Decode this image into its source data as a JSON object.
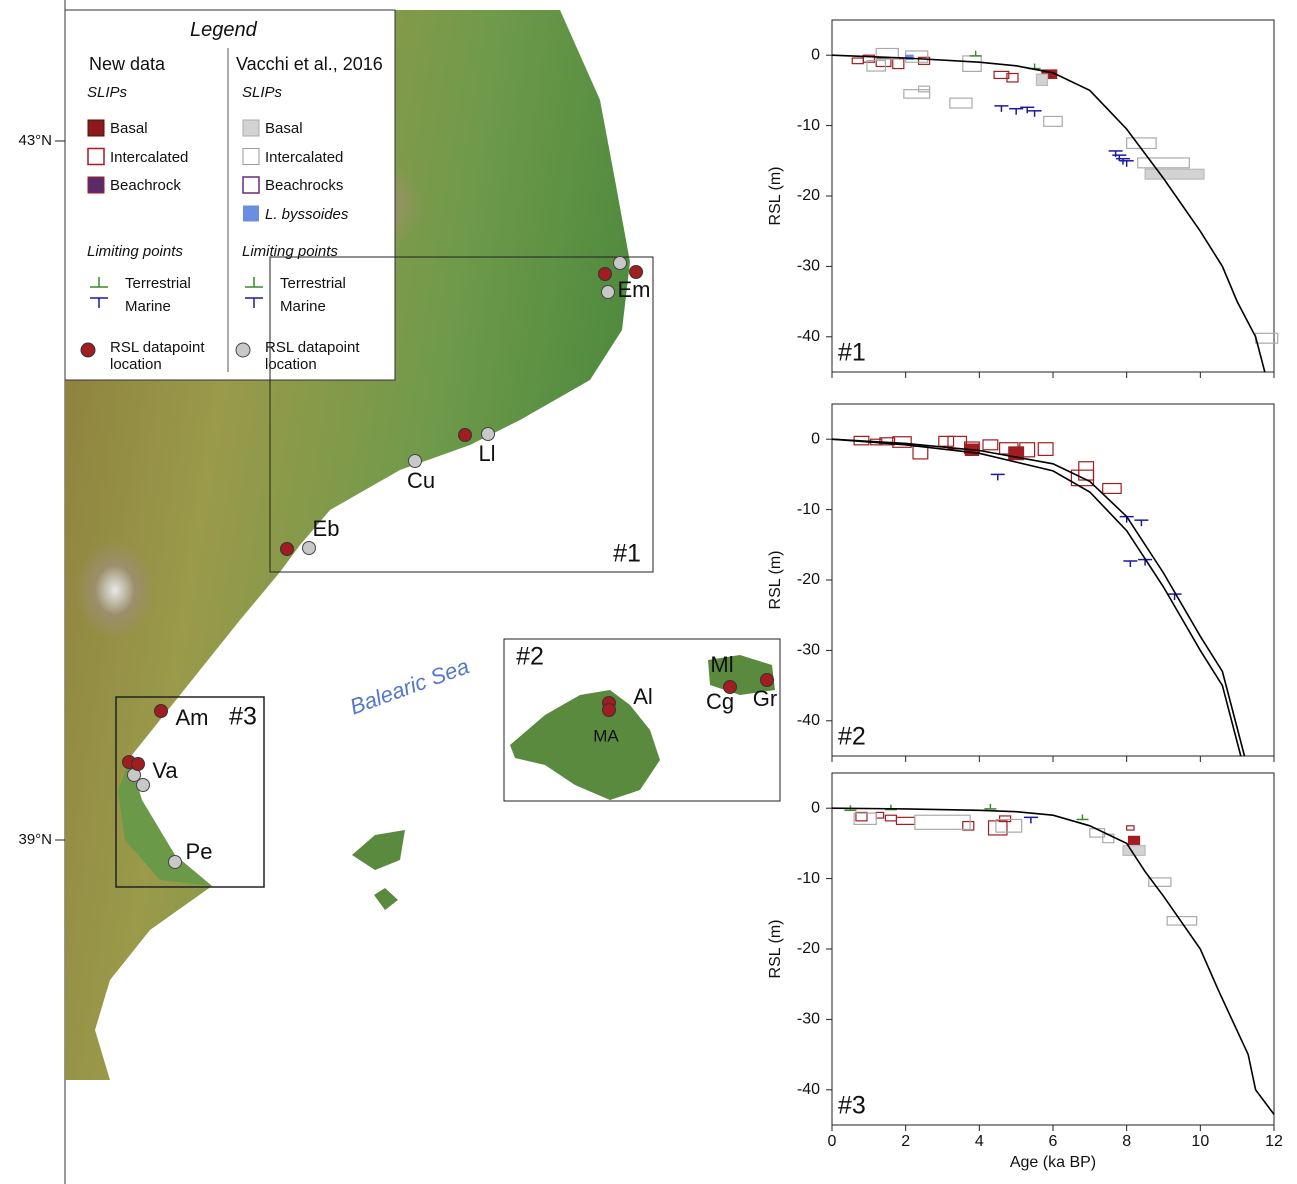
{
  "map": {
    "lat_labels": [
      "43°N",
      "39°N"
    ],
    "sea_label": "Balearic Sea",
    "boxes": [
      "#1",
      "#2",
      "#3"
    ],
    "sites": [
      "Em",
      "Ll",
      "Cu",
      "Eb",
      "Am",
      "Va",
      "Pe",
      "Al",
      "MA",
      "Ml",
      "Cg",
      "Gr"
    ],
    "legend": {
      "title": "Legend",
      "columns": [
        {
          "heading": "New data",
          "slips": "SLIPs",
          "slip_items": [
            "Basal",
            "Intercalated",
            "Beachrock"
          ],
          "limiting": "Limiting points",
          "limiting_items": [
            "Terrestrial",
            "Marine"
          ],
          "location": "RSL datapoint location"
        },
        {
          "heading": "Vacchi et al., 2016",
          "slips": "SLIPs",
          "slip_items": [
            "Basal",
            "Intercalated",
            "Beachrocks",
            "L. byssoides"
          ],
          "limiting": "Limiting points",
          "limiting_items": [
            "Terrestrial",
            "Marine"
          ],
          "location": "RSL datapoint location"
        }
      ]
    }
  },
  "chart_data": [
    {
      "type": "rsl",
      "panel_label": "#1",
      "ylabel": "RSL (m)",
      "xlim": [
        0,
        12
      ],
      "ylim": [
        -45,
        5
      ],
      "xticks": [
        0,
        2,
        4,
        6,
        8,
        10,
        12
      ],
      "yticks": [
        0,
        -10,
        -20,
        -30,
        -40
      ],
      "show_xtick_labels": false,
      "series": [
        {
          "marker": "box",
          "color": "#a11d21",
          "fill": "none",
          "x": [
            0.7,
            1.0,
            1.4,
            1.8,
            2.5,
            4.6,
            4.9
          ],
          "values": [
            -0.8,
            -0.5,
            -1.0,
            -1.2,
            -0.8,
            -2.8,
            -3.2
          ],
          "xerr": [
            0.15,
            0.15,
            0.2,
            0.15,
            0.15,
            0.2,
            0.15
          ],
          "yerr": [
            0.4,
            0.5,
            0.6,
            0.7,
            0.5,
            0.5,
            0.6
          ]
        },
        {
          "marker": "box",
          "color": "#a11d21",
          "fill": "#a11d21",
          "x": [
            5.9
          ],
          "values": [
            -2.7
          ],
          "xerr": [
            0.2
          ],
          "yerr": [
            0.6
          ]
        },
        {
          "marker": "box",
          "color": "#aaaaaa",
          "fill": "none",
          "x": [
            1.5,
            1.2,
            2.3,
            3.8,
            2.3,
            2.5,
            3.5,
            6.0,
            8.4,
            9.0,
            11.8
          ],
          "values": [
            0.2,
            -1.5,
            -0.2,
            -1.2,
            -5.5,
            -4.8,
            -6.8,
            -9.4,
            -12.5,
            -15.3,
            -40.2
          ],
          "xerr": [
            0.3,
            0.25,
            0.3,
            0.25,
            0.35,
            0.15,
            0.3,
            0.25,
            0.4,
            0.7,
            0.3
          ],
          "yerr": [
            0.75,
            0.75,
            0.8,
            1.1,
            0.6,
            0.4,
            0.7,
            0.7,
            0.75,
            0.7,
            0.7
          ]
        },
        {
          "marker": "box",
          "color": "#bbbbbb",
          "fill": "#d3d3d3",
          "x": [
            9.3,
            5.7
          ],
          "values": [
            -16.9,
            -3.5
          ],
          "xerr": [
            0.8,
            0.15
          ],
          "yerr": [
            0.7,
            0.8
          ]
        },
        {
          "marker": "box",
          "color": "#6b8ee0",
          "fill": "#6b8ee0",
          "x": [
            2.1
          ],
          "values": [
            -0.3
          ],
          "xerr": [
            0.1
          ],
          "yerr": [
            0.3
          ]
        },
        {
          "marker": "marine",
          "color": "#1a1aa0",
          "x": [
            4.6,
            5.0,
            5.3,
            5.5,
            7.7,
            7.8,
            7.9,
            8.0
          ],
          "values": [
            -7.2,
            -7.6,
            -7.4,
            -7.9,
            -13.6,
            -14.2,
            -14.7,
            -15.0
          ]
        },
        {
          "marker": "terrestrial",
          "color": "#3a8a2a",
          "x": [
            3.9,
            5.5
          ],
          "values": [
            -0.1,
            -1.9
          ]
        },
        {
          "marker": "line",
          "color": "#000000",
          "x": [
            0,
            2,
            4,
            5,
            6,
            7,
            8,
            9,
            10,
            10.6,
            11,
            11.5,
            11.75
          ],
          "values": [
            0,
            -0.4,
            -1.0,
            -1.5,
            -2.5,
            -5,
            -10.5,
            -17.5,
            -25,
            -30,
            -35,
            -40,
            -45
          ]
        }
      ]
    },
    {
      "type": "rsl",
      "panel_label": "#2",
      "ylabel": "RSL (m)",
      "xlim": [
        0,
        12
      ],
      "ylim": [
        -45,
        5
      ],
      "xticks": [
        0,
        2,
        4,
        6,
        8,
        10,
        12
      ],
      "yticks": [
        0,
        -10,
        -20,
        -30,
        -40
      ],
      "show_xtick_labels": false,
      "series": [
        {
          "marker": "box",
          "color": "#a11d21",
          "fill": "none",
          "x": [
            0.8,
            1.2,
            1.5,
            1.9,
            2.4,
            3.1,
            3.4,
            3.8,
            4.3,
            4.8,
            5.3,
            5.8,
            6.8,
            6.9,
            7.6
          ],
          "values": [
            -0.2,
            -0.4,
            -0.3,
            -0.4,
            -1.9,
            -0.3,
            -0.5,
            -1.2,
            -0.8,
            -1.3,
            -1.5,
            -1.4,
            -5.5,
            -4.5,
            -7.0
          ],
          "xerr": [
            0.2,
            0.15,
            0.2,
            0.25,
            0.2,
            0.2,
            0.25,
            0.2,
            0.2,
            0.25,
            0.2,
            0.2,
            0.3,
            0.2,
            0.25
          ],
          "yerr": [
            0.6,
            0.4,
            0.5,
            0.75,
            0.9,
            0.7,
            0.9,
            0.8,
            0.7,
            0.8,
            1.0,
            0.9,
            1.1,
            1.3,
            0.7
          ]
        },
        {
          "marker": "box",
          "color": "#a11d21",
          "fill": "#a11d21",
          "x": [
            3.8,
            5.0
          ],
          "values": [
            -1.5,
            -2.0
          ],
          "xerr": [
            0.18,
            0.2
          ],
          "yerr": [
            0.8,
            0.9
          ]
        },
        {
          "marker": "marine",
          "color": "#1a1aa0",
          "x": [
            4.5,
            8.0,
            8.4,
            8.1,
            8.5,
            9.3
          ],
          "values": [
            -5,
            -11,
            -11.5,
            -17.3,
            -17.1,
            -22
          ]
        },
        {
          "marker": "line",
          "color": "#000000",
          "x": [
            0,
            2,
            4,
            6,
            7,
            8,
            9,
            10,
            10.6,
            11.2
          ],
          "values": [
            0,
            -0.6,
            -1.6,
            -3.5,
            -6,
            -11,
            -19,
            -28,
            -33,
            -45
          ]
        },
        {
          "marker": "line",
          "color": "#000000",
          "x": [
            0,
            2,
            4,
            6,
            7,
            8,
            9,
            10,
            10.6,
            11.1
          ],
          "values": [
            0,
            -0.8,
            -2,
            -4.5,
            -7.5,
            -13,
            -21,
            -30,
            -35,
            -45
          ]
        }
      ]
    },
    {
      "type": "rsl",
      "panel_label": "#3",
      "ylabel": "RSL (m)",
      "xlabel": "Age (ka BP)",
      "xlim": [
        0,
        12
      ],
      "ylim": [
        -45,
        5
      ],
      "xticks": [
        0,
        2,
        4,
        6,
        8,
        10,
        12
      ],
      "yticks": [
        0,
        -10,
        -20,
        -30,
        -40
      ],
      "show_xtick_labels": true,
      "series": [
        {
          "marker": "box",
          "color": "#a11d21",
          "fill": "none",
          "x": [
            0.8,
            1.3,
            1.6,
            2.0,
            3.7,
            4.5,
            4.7,
            8.1
          ],
          "values": [
            -1.2,
            -1.0,
            -1.4,
            -1.8,
            -2.5,
            -2.8,
            -1.5,
            -2.8
          ],
          "xerr": [
            0.15,
            0.1,
            0.15,
            0.25,
            0.15,
            0.25,
            0.15,
            0.1
          ],
          "yerr": [
            0.6,
            0.4,
            0.4,
            0.5,
            0.6,
            1.0,
            0.4,
            0.3
          ]
        },
        {
          "marker": "box",
          "color": "#a11d21",
          "fill": "#a11d21",
          "x": [
            8.2
          ],
          "values": [
            -4.7
          ],
          "xerr": [
            0.15
          ],
          "yerr": [
            0.7
          ]
        },
        {
          "marker": "box",
          "color": "#aaaaaa",
          "fill": "none",
          "x": [
            0.9,
            3.0,
            4.8,
            7.2,
            7.5,
            8.9,
            9.5
          ],
          "values": [
            -1.5,
            -2.0,
            -2.5,
            -3.5,
            -4.3,
            -10.5,
            -16.0
          ],
          "xerr": [
            0.3,
            0.75,
            0.35,
            0.2,
            0.15,
            0.3,
            0.4
          ],
          "yerr": [
            0.8,
            1.0,
            0.9,
            0.6,
            0.6,
            0.6,
            0.6
          ]
        },
        {
          "marker": "box",
          "color": "#bbbbbb",
          "fill": "#d3d3d3",
          "x": [
            8.2
          ],
          "values": [
            -6.0
          ],
          "xerr": [
            0.3
          ],
          "yerr": [
            0.7
          ]
        },
        {
          "marker": "terrestrial",
          "color": "#3a8a2a",
          "x": [
            0.5,
            1.6,
            4.3,
            6.8
          ],
          "values": [
            -0.3,
            -0.2,
            -0.1,
            -1.6
          ]
        },
        {
          "marker": "marine",
          "color": "#1a1aa0",
          "x": [
            5.4
          ],
          "values": [
            -1.3
          ]
        },
        {
          "marker": "line",
          "color": "#000000",
          "x": [
            0,
            2,
            4,
            5,
            6,
            7,
            8,
            8.5,
            9,
            10,
            10.5,
            11.3,
            11.5,
            12
          ],
          "values": [
            0,
            -0.1,
            -0.3,
            -0.5,
            -1,
            -2.5,
            -5,
            -9,
            -12.5,
            -20,
            -26,
            -35,
            -40,
            -43.5
          ]
        }
      ]
    }
  ]
}
